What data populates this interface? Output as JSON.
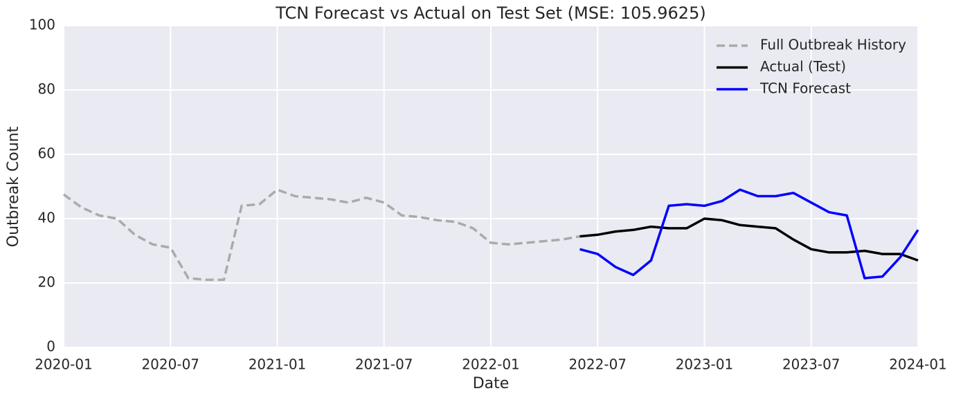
{
  "chart_data": {
    "type": "line",
    "title": "TCN Forecast vs Actual on Test Set (MSE: 105.9625)",
    "x_label": "Date",
    "y_label": "Outbreak Count",
    "x": [
      "2020-01",
      "2020-02",
      "2020-03",
      "2020-04",
      "2020-05",
      "2020-06",
      "2020-07",
      "2020-08",
      "2020-09",
      "2020-10",
      "2020-11",
      "2020-12",
      "2021-01",
      "2021-02",
      "2021-03",
      "2021-04",
      "2021-05",
      "2021-06",
      "2021-07",
      "2021-08",
      "2021-09",
      "2021-10",
      "2021-11",
      "2021-12",
      "2022-01",
      "2022-02",
      "2022-03",
      "2022-04",
      "2022-05",
      "2022-06",
      "2022-07",
      "2022-08",
      "2022-09",
      "2022-10",
      "2022-11",
      "2022-12",
      "2023-01",
      "2023-02",
      "2023-03",
      "2023-04",
      "2023-05",
      "2023-06",
      "2023-07",
      "2023-08",
      "2023-09",
      "2023-10",
      "2023-11",
      "2023-12",
      "2024-01"
    ],
    "xticks": [
      "2020-01",
      "2020-07",
      "2021-01",
      "2021-07",
      "2022-01",
      "2022-07",
      "2023-01",
      "2023-07",
      "2024-01"
    ],
    "series": [
      {
        "name": "Full Outbreak History",
        "color": "#aaaaaa",
        "dash": true,
        "values": [
          47.5,
          43.5,
          41,
          40,
          35,
          32,
          31,
          21.5,
          21,
          21,
          44,
          44.5,
          49,
          47,
          46.5,
          46,
          45,
          46.5,
          45,
          41,
          40.5,
          39.5,
          39,
          37,
          32.5,
          32,
          32.5,
          33,
          33.5,
          34.5,
          null,
          null,
          null,
          null,
          null,
          null,
          null,
          null,
          null,
          null,
          null,
          null,
          null,
          null,
          null,
          null,
          null,
          null,
          null
        ]
      },
      {
        "name": "Actual (Test)",
        "color": "#000000",
        "dash": false,
        "values": [
          null,
          null,
          null,
          null,
          null,
          null,
          null,
          null,
          null,
          null,
          null,
          null,
          null,
          null,
          null,
          null,
          null,
          null,
          null,
          null,
          null,
          null,
          null,
          null,
          null,
          null,
          null,
          null,
          null,
          34.5,
          35,
          36,
          36.5,
          37.5,
          37,
          37,
          40,
          39.5,
          38,
          37.5,
          37,
          33.5,
          30.5,
          29.5,
          29.5,
          30,
          29,
          29,
          27
        ]
      },
      {
        "name": "TCN Forecast",
        "color": "#0000ff",
        "dash": false,
        "values": [
          null,
          null,
          null,
          null,
          null,
          null,
          null,
          null,
          null,
          null,
          null,
          null,
          null,
          null,
          null,
          null,
          null,
          null,
          null,
          null,
          null,
          null,
          null,
          null,
          null,
          null,
          null,
          null,
          null,
          30.5,
          29,
          25,
          22.5,
          27,
          44,
          44.5,
          44,
          45.5,
          49,
          47,
          47,
          48,
          45,
          42,
          41,
          21.5,
          22,
          28,
          36.5
        ]
      }
    ],
    "ylim": [
      0,
      100
    ],
    "yticks": [
      0,
      20,
      40,
      60,
      80,
      100
    ],
    "grid": true,
    "legend": "upper-right"
  }
}
